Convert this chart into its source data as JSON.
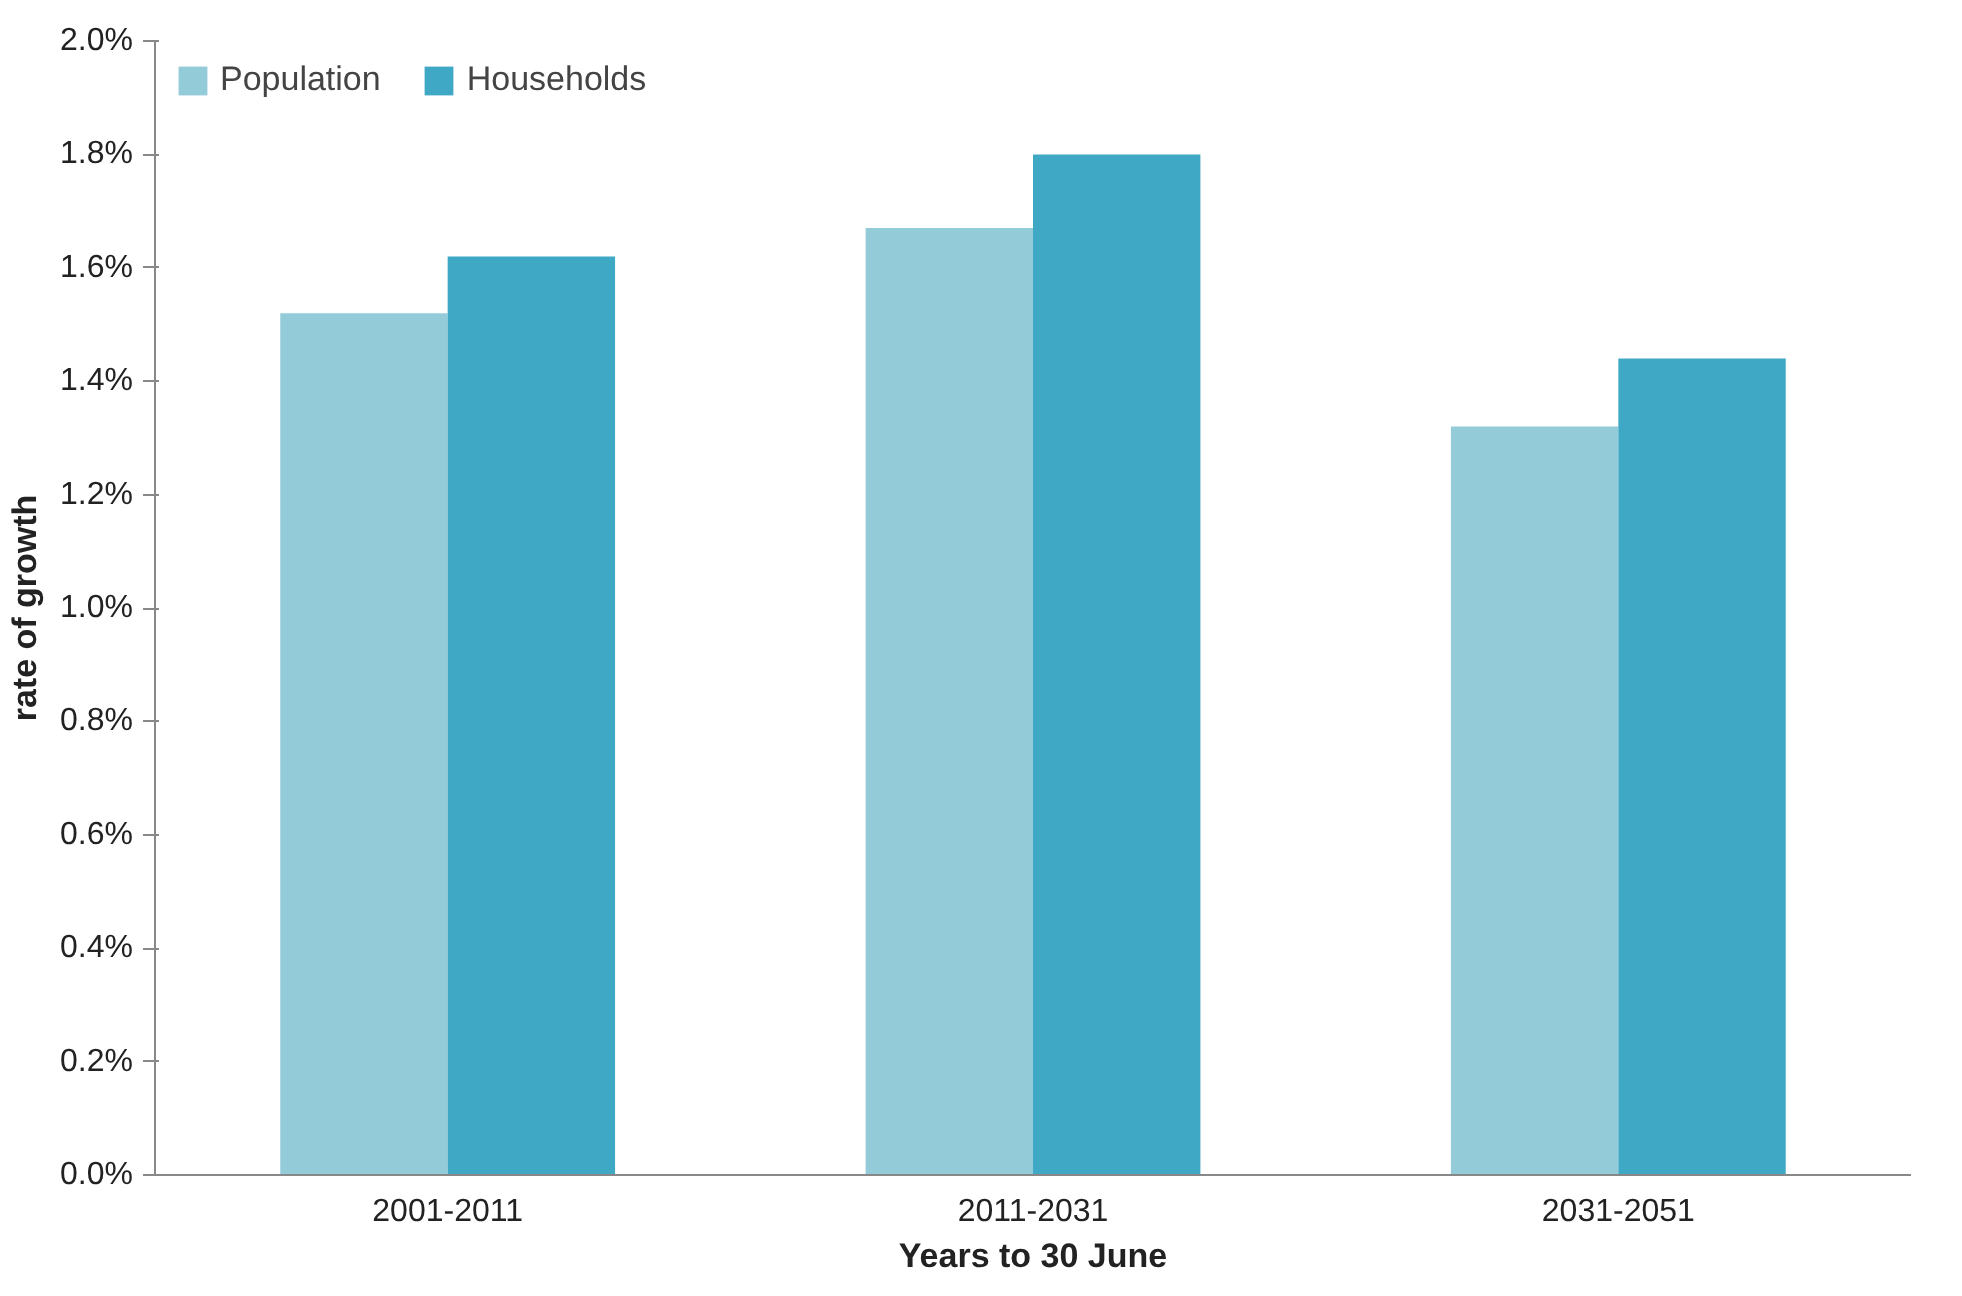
{
  "chart_data": {
    "type": "bar",
    "xlabel": "Years to 30 June",
    "ylabel": "rate of growth",
    "categories": [
      "2001-2011",
      "2011-2031",
      "2031-2051"
    ],
    "series": [
      {
        "name": "Population",
        "color": "#93cbd9",
        "values": [
          1.52,
          1.67,
          1.32
        ]
      },
      {
        "name": "Households",
        "color": "#3fa9c5",
        "values": [
          1.62,
          1.8,
          1.44
        ]
      }
    ],
    "ylim": [
      0,
      2
    ],
    "yticks": [
      {
        "value": 0,
        "label": "0.0%"
      },
      {
        "value": 0.2,
        "label": "0.2%"
      },
      {
        "value": 0.4,
        "label": "0.4%"
      },
      {
        "value": 0.6,
        "label": "0.6%"
      },
      {
        "value": 0.8,
        "label": "0.8%"
      },
      {
        "value": 1.0,
        "label": "1.0%"
      },
      {
        "value": 1.2,
        "label": "1.2%"
      },
      {
        "value": 1.4,
        "label": "1.4%"
      },
      {
        "value": 1.6,
        "label": "1.6%"
      },
      {
        "value": 1.8,
        "label": "1.8%"
      },
      {
        "value": 2.0,
        "label": "2.0%"
      }
    ],
    "grid": false,
    "legend": "top left"
  }
}
